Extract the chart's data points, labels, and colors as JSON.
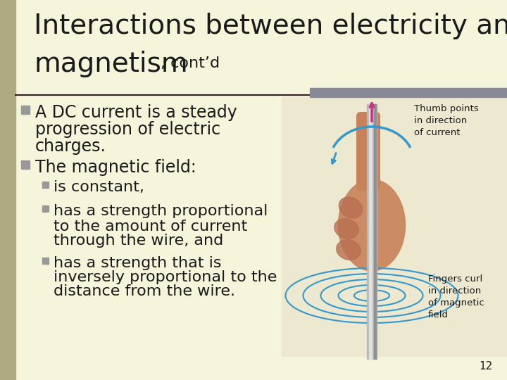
{
  "bg_color": "#f5f5dc",
  "title_line1": "Interactions between electricity and",
  "title_line2_main": "magnetism",
  "title_line2_small": ", cont’d",
  "title_fontsize": 28,
  "title_small_fontsize": 16,
  "title_color": "#1a1a1a",
  "divider_color": "#3a1a2a",
  "divider_color2": "#888899",
  "bullet_color": "#999999",
  "text_color": "#1a1a1a",
  "slide_number": "12",
  "left_bar_color": "#b0aa82",
  "bullet1_line1": "A DC current is a steady",
  "bullet1_line2": "progression of electric",
  "bullet1_line3": "charges.",
  "bullet2": "The magnetic field:",
  "sub1": "is constant,",
  "sub2_line1": "has a strength proportional",
  "sub2_line2": "to the amount of current",
  "sub2_line3": "through the wire, and",
  "sub3_line1": "has a strength that is",
  "sub3_line2": "inversely proportional to the",
  "sub3_line3": "distance from the wire.",
  "main_fs": 17,
  "sub_fs": 16
}
